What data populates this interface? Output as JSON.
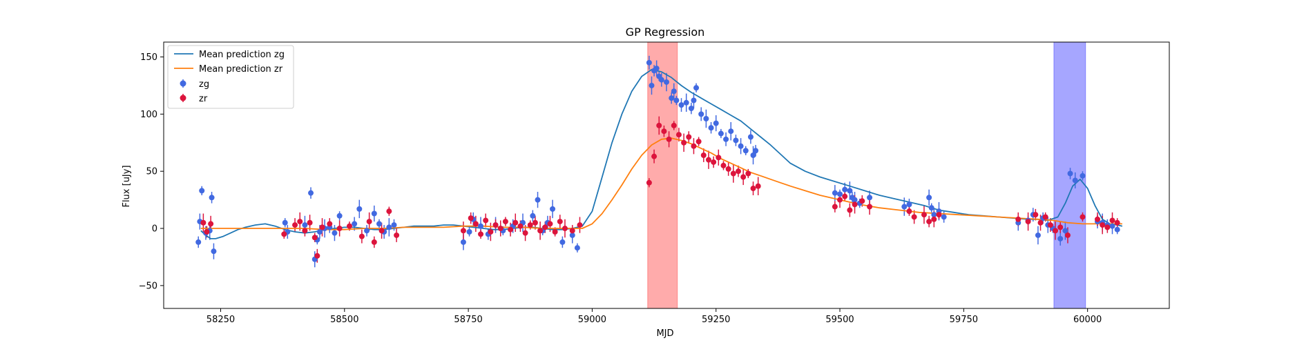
{
  "chart_data": {
    "type": "scatter",
    "title": "GP Regression",
    "xlabel": "MJD",
    "ylabel": "Flux [uJy]",
    "xlim": [
      58135,
      60165
    ],
    "ylim": [
      -70,
      163
    ],
    "xticks": [
      58250,
      58500,
      58750,
      59000,
      59250,
      59500,
      59750,
      60000
    ],
    "yticks": [
      -50,
      0,
      50,
      100,
      150
    ],
    "grid": false,
    "legend_position": "top-left",
    "shaded_regions": [
      {
        "x_range": [
          59112,
          59172
        ],
        "color": "#ff0000",
        "alpha": 0.33
      },
      {
        "x_range": [
          59932,
          59996
        ],
        "color": "#0000ff",
        "alpha": 0.35
      }
    ],
    "series": [
      {
        "name": "Mean prediction zg",
        "kind": "line",
        "color": "#1f77b4",
        "x": [
          58210,
          58220,
          58230,
          58240,
          58255,
          58270,
          58285,
          58300,
          58320,
          58340,
          58360,
          58380,
          58400,
          58420,
          58440,
          58460,
          58480,
          58500,
          58520,
          58540,
          58560,
          58580,
          58600,
          58620,
          58640,
          58660,
          58680,
          58700,
          58720,
          58740,
          58760,
          58780,
          58800,
          58820,
          58840,
          58860,
          58880,
          58900,
          58920,
          58940,
          58960,
          58980,
          59000,
          59020,
          59040,
          59060,
          59080,
          59100,
          59120,
          59140,
          59160,
          59180,
          59200,
          59220,
          59240,
          59260,
          59280,
          59300,
          59320,
          59340,
          59360,
          59380,
          59400,
          59430,
          59460,
          59490,
          59520,
          59550,
          59580,
          59610,
          59640,
          59670,
          59700,
          59730,
          59760,
          59790,
          59820,
          59850,
          59880,
          59900,
          59920,
          59940,
          59955,
          59970,
          59985,
          60000,
          60015,
          60030,
          60045,
          60060,
          60070
        ],
        "y": [
          -2,
          -6,
          -9,
          -9,
          -7,
          -4,
          -1,
          1,
          3,
          4,
          2,
          -1,
          -3,
          -4,
          -3,
          -1,
          0,
          1,
          1,
          0,
          -1,
          -1,
          0,
          1,
          2,
          2,
          2,
          3,
          3,
          2,
          1,
          0,
          -1,
          -1,
          0,
          1,
          1,
          0,
          -1,
          -1,
          0,
          2,
          15,
          45,
          75,
          100,
          120,
          133,
          139,
          137,
          132,
          125,
          119,
          114,
          109,
          104,
          99,
          94,
          87,
          80,
          73,
          65,
          57,
          50,
          45,
          41,
          37,
          33,
          29,
          26,
          23,
          20,
          16,
          14,
          12,
          11,
          10,
          9,
          8,
          8,
          7,
          10,
          22,
          37,
          43,
          35,
          20,
          8,
          4,
          3,
          2
        ]
      },
      {
        "name": "Mean prediction zr",
        "kind": "line",
        "color": "#ff7f0e",
        "x": [
          58210,
          58230,
          58260,
          58300,
          58340,
          58380,
          58420,
          58460,
          58500,
          58540,
          58580,
          58620,
          58660,
          58700,
          58740,
          58780,
          58820,
          58860,
          58900,
          58940,
          58980,
          59000,
          59020,
          59040,
          59060,
          59080,
          59100,
          59120,
          59140,
          59160,
          59180,
          59200,
          59220,
          59240,
          59260,
          59280,
          59300,
          59320,
          59340,
          59360,
          59380,
          59400,
          59430,
          59460,
          59500,
          59540,
          59580,
          59620,
          59660,
          59700,
          59740,
          59780,
          59820,
          59860,
          59900,
          59930,
          59960,
          59990,
          60020,
          60050,
          60070
        ],
        "y": [
          0,
          0,
          0,
          0,
          0,
          0,
          0,
          -1,
          -1,
          0,
          0,
          1,
          1,
          1,
          2,
          2,
          1,
          1,
          0,
          0,
          0,
          4,
          13,
          25,
          38,
          52,
          64,
          73,
          78,
          79,
          77,
          74,
          70,
          66,
          61,
          57,
          53,
          49,
          46,
          43,
          40,
          37,
          33,
          29,
          25,
          21,
          18,
          16,
          14,
          13,
          12,
          11,
          10,
          9,
          8,
          7,
          5,
          4,
          4,
          4,
          4
        ]
      },
      {
        "name": "zg",
        "kind": "points",
        "color": "#4169e1",
        "x": [
          58205,
          58208,
          58212,
          58220,
          58228,
          58232,
          58236,
          58380,
          58385,
          58420,
          58432,
          58440,
          58445,
          58450,
          58460,
          58470,
          58480,
          58490,
          58520,
          58530,
          58545,
          58560,
          58570,
          58580,
          58590,
          58600,
          58740,
          58752,
          58760,
          58775,
          58790,
          58805,
          58820,
          58840,
          58860,
          58880,
          58890,
          58900,
          58910,
          58920,
          58940,
          58960,
          58970,
          59115,
          59120,
          59125,
          59130,
          59135,
          59140,
          59150,
          59160,
          59165,
          59170,
          59180,
          59190,
          59200,
          59205,
          59210,
          59220,
          59230,
          59240,
          59250,
          59260,
          59270,
          59280,
          59290,
          59300,
          59310,
          59320,
          59325,
          59330,
          59490,
          59500,
          59510,
          59520,
          59525,
          59530,
          59540,
          59560,
          59630,
          59640,
          59680,
          59685,
          59690,
          59700,
          59710,
          59860,
          59880,
          59890,
          59900,
          59910,
          59920,
          59930,
          59945,
          59955,
          59965,
          59975,
          59990,
          60020,
          60030,
          60040,
          60050,
          60060
        ],
        "y": [
          -12,
          6,
          33,
          -4,
          -2,
          27,
          -20,
          5,
          -3,
          3,
          31,
          -27,
          -10,
          -3,
          0,
          1,
          -4,
          11,
          4,
          17,
          -2,
          13,
          4,
          -3,
          1,
          3,
          -12,
          -3,
          8,
          2,
          -5,
          3,
          -2,
          2,
          5,
          11,
          25,
          -2,
          5,
          17,
          -12,
          -6,
          -17,
          145,
          125,
          138,
          140,
          133,
          130,
          128,
          114,
          120,
          112,
          108,
          110,
          105,
          112,
          123,
          100,
          96,
          88,
          92,
          83,
          78,
          85,
          77,
          72,
          68,
          80,
          64,
          68,
          31,
          30,
          34,
          33,
          27,
          25,
          22,
          27,
          19,
          21,
          27,
          18,
          12,
          15,
          10,
          5,
          7,
          12,
          -6,
          9,
          3,
          0,
          -9,
          -2,
          48,
          42,
          46,
          6,
          5,
          3,
          2,
          -1
        ]
      },
      {
        "name": "zr",
        "kind": "points",
        "color": "#dc143c",
        "x": [
          58215,
          58222,
          58230,
          58378,
          58400,
          58410,
          58420,
          58430,
          58440,
          58445,
          58455,
          58470,
          58490,
          58510,
          58535,
          58550,
          58560,
          58575,
          58590,
          58605,
          58740,
          58755,
          58765,
          58775,
          58785,
          58795,
          58805,
          58815,
          58825,
          58835,
          58845,
          58855,
          58865,
          58875,
          58885,
          58895,
          58905,
          58915,
          58925,
          58935,
          58945,
          58960,
          58975,
          59115,
          59125,
          59135,
          59145,
          59155,
          59165,
          59175,
          59185,
          59195,
          59205,
          59215,
          59225,
          59235,
          59245,
          59255,
          59265,
          59275,
          59285,
          59295,
          59305,
          59315,
          59325,
          59335,
          59490,
          59500,
          59510,
          59520,
          59530,
          59545,
          59560,
          59640,
          59650,
          59670,
          59680,
          59690,
          59700,
          59860,
          59880,
          59895,
          59905,
          59915,
          59925,
          59935,
          59945,
          59960,
          59990,
          60020,
          60030,
          60040,
          60050,
          60060
        ],
        "y": [
          5,
          -3,
          4,
          -5,
          3,
          6,
          -2,
          5,
          -8,
          -24,
          1,
          4,
          0,
          2,
          -7,
          6,
          -12,
          -2,
          15,
          -6,
          -2,
          9,
          4,
          -5,
          7,
          -3,
          3,
          0,
          6,
          -1,
          5,
          2,
          -4,
          3,
          5,
          -2,
          1,
          4,
          -3,
          6,
          0,
          -2,
          3,
          40,
          63,
          90,
          85,
          78,
          90,
          82,
          75,
          80,
          72,
          76,
          64,
          60,
          58,
          62,
          55,
          52,
          48,
          50,
          45,
          48,
          35,
          37,
          19,
          25,
          28,
          16,
          21,
          24,
          19,
          15,
          10,
          12,
          6,
          8,
          12,
          8,
          6,
          12,
          5,
          10,
          3,
          -2,
          1,
          -6,
          10,
          8,
          3,
          1,
          7,
          5
        ]
      }
    ]
  }
}
